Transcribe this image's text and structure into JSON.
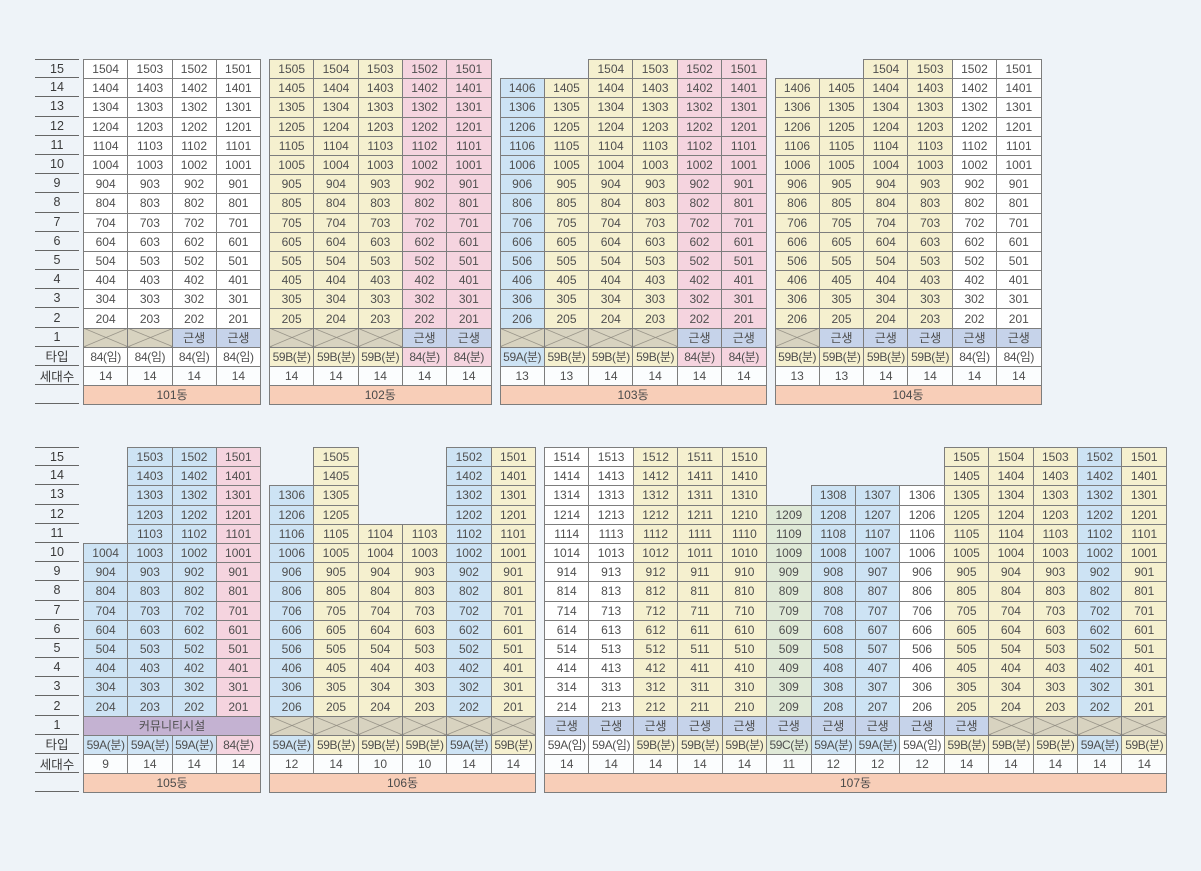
{
  "colors": {
    "page_bg": "#eef3f8",
    "yellow": "#f5f0cf",
    "pink": "#f5d4df",
    "blue": "#cde3f4",
    "green": "#dfe9d7",
    "white": "#ffffff",
    "x_cell_bg": "#d8d3c0",
    "x_line": "#8f8b80",
    "geunsaeng_bg": "#c6d3ea",
    "community_bg": "#c4b2d2",
    "building_row_bg": "#f8ceb8",
    "units_row_bg": "#fbfdfe",
    "border": "#7d7d7d",
    "axis_line": "#666666",
    "text": "#4f4f4f"
  },
  "left_axis": {
    "floors": [
      "15",
      "14",
      "13",
      "12",
      "11",
      "10",
      "9",
      "8",
      "7",
      "6",
      "5",
      "4",
      "3",
      "2",
      "1"
    ],
    "type_label": "타입",
    "units_label": "세대수"
  },
  "labels": {
    "geunsaeng": "근생",
    "community": "커뮤니티시설"
  },
  "chart_data": {
    "type": "table",
    "floor_range": [
      2,
      15
    ],
    "sections": [
      {
        "buildings": [
          {
            "name": "101동",
            "ground_merged": false,
            "columns": [
              {
                "suffix": 4,
                "top_floor": 15,
                "color": "white",
                "ground": "x",
                "type": "84(임)",
                "units": "14"
              },
              {
                "suffix": 3,
                "top_floor": 15,
                "color": "white",
                "ground": "x",
                "type": "84(임)",
                "units": "14"
              },
              {
                "suffix": 2,
                "top_floor": 15,
                "color": "white",
                "ground": "g",
                "type": "84(임)",
                "units": "14"
              },
              {
                "suffix": 1,
                "top_floor": 15,
                "color": "white",
                "ground": "g",
                "type": "84(임)",
                "units": "14"
              }
            ]
          },
          {
            "name": "102동",
            "ground_merged": false,
            "columns": [
              {
                "suffix": 5,
                "top_floor": 15,
                "color": "yellow",
                "ground": "x",
                "type": "59B(분)",
                "units": "14"
              },
              {
                "suffix": 4,
                "top_floor": 15,
                "color": "yellow",
                "ground": "x",
                "type": "59B(분)",
                "units": "14"
              },
              {
                "suffix": 3,
                "top_floor": 15,
                "color": "yellow",
                "ground": "x",
                "type": "59B(분)",
                "units": "14"
              },
              {
                "suffix": 2,
                "top_floor": 15,
                "color": "pink",
                "ground": "g",
                "type": "84(분)",
                "units": "14"
              },
              {
                "suffix": 1,
                "top_floor": 15,
                "color": "pink",
                "ground": "g",
                "type": "84(분)",
                "units": "14"
              }
            ]
          },
          {
            "name": "103동",
            "ground_merged": false,
            "columns": [
              {
                "suffix": 6,
                "top_floor": 14,
                "color": "blue",
                "ground": "x",
                "type": "59A(분)",
                "units": "13"
              },
              {
                "suffix": 5,
                "top_floor": 14,
                "color": "yellow",
                "ground": "x",
                "type": "59B(분)",
                "units": "13"
              },
              {
                "suffix": 4,
                "top_floor": 15,
                "color": "yellow",
                "ground": "x",
                "type": "59B(분)",
                "units": "14"
              },
              {
                "suffix": 3,
                "top_floor": 15,
                "color": "yellow",
                "ground": "x",
                "type": "59B(분)",
                "units": "14"
              },
              {
                "suffix": 2,
                "top_floor": 15,
                "color": "pink",
                "ground": "g",
                "type": "84(분)",
                "units": "14"
              },
              {
                "suffix": 1,
                "top_floor": 15,
                "color": "pink",
                "ground": "g",
                "type": "84(분)",
                "units": "14"
              }
            ]
          },
          {
            "name": "104동",
            "ground_merged": false,
            "columns": [
              {
                "suffix": 6,
                "top_floor": 14,
                "color": "yellow",
                "ground": "x",
                "type": "59B(분)",
                "units": "13"
              },
              {
                "suffix": 5,
                "top_floor": 14,
                "color": "yellow",
                "ground": "g",
                "type": "59B(분)",
                "units": "13"
              },
              {
                "suffix": 4,
                "top_floor": 15,
                "color": "yellow",
                "ground": "g",
                "type": "59B(분)",
                "units": "14"
              },
              {
                "suffix": 3,
                "top_floor": 15,
                "color": "yellow",
                "ground": "g",
                "type": "59B(분)",
                "units": "14"
              },
              {
                "suffix": 2,
                "top_floor": 15,
                "color": "white",
                "ground": "g",
                "type": "84(임)",
                "units": "14"
              },
              {
                "suffix": 1,
                "top_floor": 15,
                "color": "white",
                "ground": "g",
                "type": "84(임)",
                "units": "14"
              }
            ]
          }
        ]
      },
      {
        "buildings": [
          {
            "name": "105동",
            "ground_merged": true,
            "columns": [
              {
                "suffix": 4,
                "top_floor": 10,
                "color": "blue",
                "type": "59A(분)",
                "units": "9"
              },
              {
                "suffix": 3,
                "top_floor": 15,
                "color": "blue",
                "type": "59A(분)",
                "units": "14"
              },
              {
                "suffix": 2,
                "top_floor": 15,
                "color": "blue",
                "type": "59A(분)",
                "units": "14"
              },
              {
                "suffix": 1,
                "top_floor": 15,
                "color": "pink",
                "type": "84(분)",
                "units": "14"
              }
            ]
          },
          {
            "name": "106동",
            "ground_merged": false,
            "columns": [
              {
                "suffix": 6,
                "top_floor": 13,
                "color": "blue",
                "ground": "x",
                "type": "59A(분)",
                "units": "12"
              },
              {
                "suffix": 5,
                "top_floor": 15,
                "color": "yellow",
                "ground": "x",
                "type": "59B(분)",
                "units": "14"
              },
              {
                "suffix": 4,
                "top_floor": 11,
                "color": "yellow",
                "ground": "x",
                "type": "59B(분)",
                "units": "10"
              },
              {
                "suffix": 3,
                "top_floor": 11,
                "color": "yellow",
                "ground": "x",
                "type": "59B(분)",
                "units": "10"
              },
              {
                "suffix": 2,
                "top_floor": 15,
                "color": "blue",
                "ground": "x",
                "type": "59A(분)",
                "units": "14"
              },
              {
                "suffix": 1,
                "top_floor": 15,
                "color": "yellow",
                "ground": "x",
                "type": "59B(분)",
                "units": "14"
              }
            ]
          },
          {
            "name": "107동",
            "ground_merged": false,
            "columns": [
              {
                "suffix": 14,
                "top_floor": 15,
                "color": "white",
                "ground": "g",
                "type": "59A(임)",
                "units": "14"
              },
              {
                "suffix": 13,
                "top_floor": 15,
                "color": "white",
                "ground": "g",
                "type": "59A(임)",
                "units": "14"
              },
              {
                "suffix": 12,
                "top_floor": 15,
                "color": "yellow",
                "ground": "g",
                "type": "59B(분)",
                "units": "14"
              },
              {
                "suffix": 11,
                "top_floor": 15,
                "color": "yellow",
                "ground": "g",
                "type": "59B(분)",
                "units": "14"
              },
              {
                "suffix": 10,
                "top_floor": 15,
                "color": "yellow",
                "ground": "g",
                "type": "59B(분)",
                "units": "14"
              },
              {
                "suffix": 9,
                "top_floor": 12,
                "color": "green",
                "ground": "g",
                "type": "59C(분)",
                "units": "11"
              },
              {
                "suffix": 8,
                "top_floor": 13,
                "color": "blue",
                "ground": "g",
                "type": "59A(분)",
                "units": "12"
              },
              {
                "suffix": 7,
                "top_floor": 13,
                "color": "blue",
                "ground": "g",
                "type": "59A(분)",
                "units": "12"
              },
              {
                "suffix": 6,
                "top_floor": 13,
                "color": "white",
                "ground": "g",
                "type": "59A(임)",
                "units": "12"
              },
              {
                "suffix": 5,
                "top_floor": 15,
                "color": "yellow",
                "ground": "g",
                "type": "59B(분)",
                "units": "14"
              },
              {
                "suffix": 4,
                "top_floor": 15,
                "color": "yellow",
                "ground": "x",
                "type": "59B(분)",
                "units": "14"
              },
              {
                "suffix": 3,
                "top_floor": 15,
                "color": "yellow",
                "ground": "x",
                "type": "59B(분)",
                "units": "14"
              },
              {
                "suffix": 2,
                "top_floor": 15,
                "color": "blue",
                "ground": "x",
                "type": "59A(분)",
                "units": "14"
              },
              {
                "suffix": 1,
                "top_floor": 15,
                "color": "yellow",
                "ground": "x",
                "type": "59B(분)",
                "units": "14"
              }
            ]
          }
        ]
      }
    ]
  }
}
